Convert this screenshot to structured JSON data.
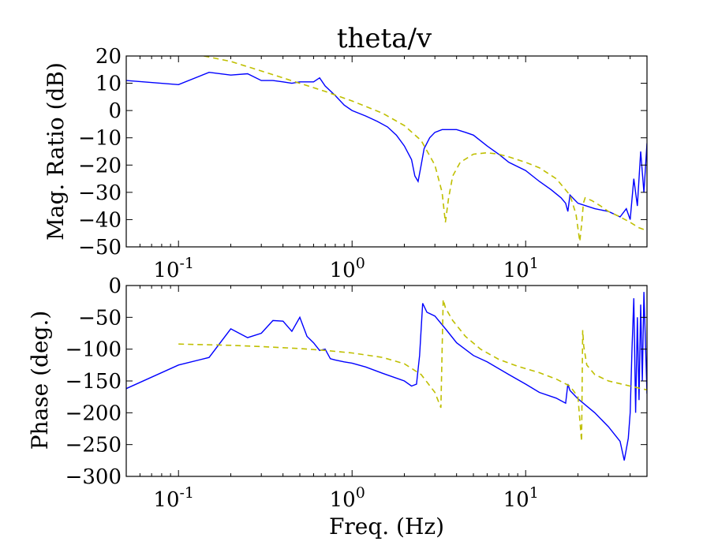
{
  "figure": {
    "title": "theta/v",
    "xlabel": "Freq. (Hz)"
  },
  "chart_data": [
    {
      "type": "line",
      "title": "theta/v",
      "xlabel": "",
      "ylabel": "Mag. Ratio (dB)",
      "xscale": "log",
      "xlim": [
        0.05,
        50
      ],
      "ylim": [
        -50,
        20
      ],
      "xticks": [
        {
          "value": 0.1,
          "base": "10",
          "exp": "-1"
        },
        {
          "value": 1,
          "base": "10",
          "exp": "0"
        },
        {
          "value": 10,
          "base": "10",
          "exp": "1"
        }
      ],
      "yticks": [
        {
          "value": 20,
          "label": "20"
        },
        {
          "value": 10,
          "label": "10"
        },
        {
          "value": 0,
          "label": "0"
        },
        {
          "value": -10,
          "label": "−10"
        },
        {
          "value": -20,
          "label": "−20"
        },
        {
          "value": -30,
          "label": "−30"
        },
        {
          "value": -40,
          "label": "−40"
        },
        {
          "value": -50,
          "label": "−50"
        }
      ],
      "grid": false,
      "series": [
        {
          "color": "#0000ff",
          "style": "solid",
          "x": [
            0.05,
            0.1,
            0.15,
            0.2,
            0.25,
            0.3,
            0.35,
            0.4,
            0.45,
            0.5,
            0.55,
            0.6,
            0.65,
            0.7,
            0.8,
            0.9,
            1.0,
            1.2,
            1.4,
            1.6,
            1.8,
            2.0,
            2.2,
            2.3,
            2.4,
            2.5,
            2.6,
            2.8,
            3.0,
            3.3,
            3.6,
            4.0,
            4.5,
            5.0,
            6.0,
            7.0,
            8.0,
            10,
            12,
            14,
            16,
            17,
            17.5,
            18,
            20,
            25,
            30,
            35,
            38,
            40,
            42,
            44,
            46,
            48,
            50
          ],
          "y": [
            11,
            9.5,
            14,
            13,
            13.5,
            11,
            11,
            10.5,
            10,
            10.5,
            10.5,
            10.5,
            12,
            9,
            5.5,
            2,
            0,
            -2,
            -4,
            -6,
            -9,
            -13,
            -18,
            -24,
            -26,
            -20,
            -14,
            -10,
            -8,
            -7,
            -7,
            -7,
            -8,
            -9,
            -13,
            -16,
            -19,
            -22,
            -26,
            -29,
            -32,
            -34,
            -37,
            -31,
            -34,
            -36,
            -37,
            -39,
            -36,
            -40,
            -25,
            -35,
            -15,
            -30,
            -12
          ]
        },
        {
          "color": "#bfbf00",
          "style": "dashed",
          "x": [
            0.14,
            0.2,
            0.3,
            0.5,
            0.7,
            1.0,
            1.5,
            2.0,
            2.5,
            3.0,
            3.3,
            3.45,
            3.6,
            3.8,
            4.2,
            5.0,
            6.0,
            7.0,
            8.0,
            10,
            12,
            15,
            18,
            19.5,
            20.5,
            21,
            21.5,
            22,
            24,
            27,
            30,
            35,
            40,
            45,
            50
          ],
          "y": [
            20,
            18,
            14.5,
            10,
            7,
            3.5,
            -1,
            -5.5,
            -11,
            -20,
            -30,
            -41,
            -32,
            -24,
            -19,
            -16,
            -15.5,
            -16,
            -17,
            -19,
            -21,
            -25,
            -31,
            -38,
            -48,
            -42,
            -34,
            -32,
            -33,
            -35,
            -37,
            -39,
            -41,
            -43,
            -44
          ]
        }
      ]
    },
    {
      "type": "line",
      "title": "",
      "xlabel": "Freq. (Hz)",
      "ylabel": "Phase (deg.)",
      "xscale": "log",
      "xlim": [
        0.05,
        50
      ],
      "ylim": [
        -300,
        0
      ],
      "xticks": [
        {
          "value": 0.1,
          "base": "10",
          "exp": "-1"
        },
        {
          "value": 1,
          "base": "10",
          "exp": "0"
        },
        {
          "value": 10,
          "base": "10",
          "exp": "1"
        }
      ],
      "yticks": [
        {
          "value": 0,
          "label": "0"
        },
        {
          "value": -50,
          "label": "−50"
        },
        {
          "value": -100,
          "label": "−100"
        },
        {
          "value": -150,
          "label": "−150"
        },
        {
          "value": -200,
          "label": "−200"
        },
        {
          "value": -250,
          "label": "−250"
        },
        {
          "value": -300,
          "label": "−300"
        }
      ],
      "grid": false,
      "series": [
        {
          "color": "#0000ff",
          "style": "solid",
          "x": [
            0.05,
            0.1,
            0.15,
            0.2,
            0.25,
            0.3,
            0.35,
            0.4,
            0.45,
            0.5,
            0.55,
            0.6,
            0.65,
            0.7,
            0.75,
            0.8,
            0.9,
            1.0,
            1.2,
            1.5,
            2.0,
            2.2,
            2.35,
            2.45,
            2.55,
            2.7,
            3.0,
            3.5,
            4.0,
            5.0,
            6.0,
            8.0,
            10,
            12,
            15,
            17,
            17.5,
            18,
            20,
            25,
            30,
            35,
            37,
            39,
            40,
            41,
            42,
            43,
            44,
            45,
            46,
            47,
            48,
            50
          ],
          "y": [
            -162,
            -125,
            -113,
            -68,
            -82,
            -75,
            -55,
            -56,
            -72,
            -50,
            -80,
            -90,
            -102,
            -100,
            -115,
            -117,
            -120,
            -122,
            -128,
            -138,
            -150,
            -158,
            -155,
            -110,
            -28,
            -42,
            -48,
            -70,
            -90,
            -110,
            -120,
            -140,
            -155,
            -168,
            -177,
            -185,
            -155,
            -165,
            -178,
            -200,
            -222,
            -245,
            -275,
            -240,
            -200,
            -100,
            -20,
            -200,
            -50,
            -180,
            -30,
            -150,
            -10,
            -170
          ]
        },
        {
          "color": "#bfbf00",
          "style": "dashed",
          "x": [
            0.1,
            0.2,
            0.3,
            0.5,
            0.7,
            1.0,
            1.5,
            2.0,
            2.5,
            3.0,
            3.25,
            3.35,
            3.45,
            3.8,
            4.5,
            5.5,
            7.0,
            9.0,
            12,
            15,
            18,
            20,
            21,
            21.3,
            21.6,
            22.5,
            25,
            30,
            40,
            50
          ],
          "y": [
            -92,
            -94,
            -96,
            -99,
            -102,
            -106,
            -113,
            -123,
            -140,
            -168,
            -192,
            -22,
            -35,
            -55,
            -80,
            -100,
            -116,
            -127,
            -137,
            -147,
            -158,
            -175,
            -245,
            -70,
            -95,
            -125,
            -140,
            -150,
            -158,
            -164
          ]
        }
      ]
    }
  ]
}
